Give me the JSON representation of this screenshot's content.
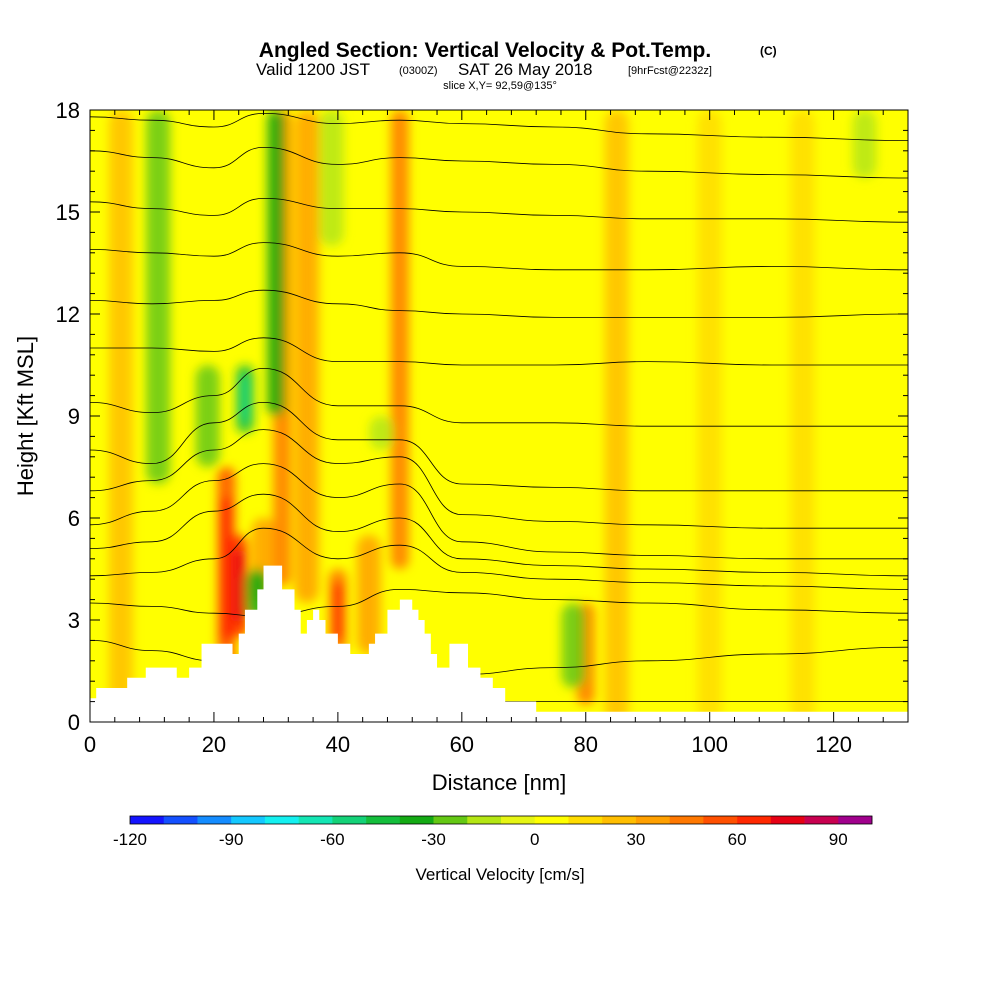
{
  "header": {
    "title": "Angled Section: Vertical Velocity & Pot.Temp.",
    "title_unit": "(C)",
    "valid_prefix": "Valid 1200 JST",
    "valid_utc": "(0300Z)",
    "valid_date": "SAT 26 May 2018",
    "forecast": "[9hrFcst@2232z]",
    "slice": "slice X,Y= 92,59@135°"
  },
  "chart_data": {
    "type": "heatmap",
    "title": "Angled Section: Vertical Velocity & Pot.Temp.",
    "xlabel": "Distance [nm]",
    "ylabel": "Height [Kft MSL]",
    "xlim": [
      0,
      132
    ],
    "ylim": [
      0,
      18
    ],
    "x_ticks": [
      "0",
      "20",
      "40",
      "60",
      "80",
      "100",
      "120"
    ],
    "y_ticks": [
      "0",
      "3",
      "6",
      "9",
      "12",
      "15",
      "18"
    ],
    "colorbar": {
      "label": "Vertical Velocity [cm/s]",
      "min": -120,
      "max": 100,
      "step": 10,
      "tick_labels": [
        "-120",
        "-90",
        "-60",
        "-30",
        "0",
        "30",
        "60",
        "90"
      ],
      "colors": [
        "#1414ff",
        "#1450ff",
        "#148cff",
        "#14c8ff",
        "#14f0f0",
        "#14e6b4",
        "#14d278",
        "#14be3c",
        "#14aa14",
        "#64c814",
        "#b4e614",
        "#e6f514",
        "#ffff00",
        "#ffdc00",
        "#ffbe00",
        "#ffa000",
        "#ff7800",
        "#ff5000",
        "#ff2800",
        "#e60014",
        "#c80050",
        "#a0008c"
      ]
    },
    "terrain_kft": [
      [
        0,
        0.7
      ],
      [
        1,
        1.0
      ],
      [
        6,
        1.3
      ],
      [
        9,
        1.6
      ],
      [
        14,
        1.3
      ],
      [
        16,
        1.6
      ],
      [
        18,
        2.3
      ],
      [
        23,
        2.0
      ],
      [
        24,
        2.6
      ],
      [
        25,
        3.3
      ],
      [
        27,
        3.9
      ],
      [
        28,
        4.6
      ],
      [
        31,
        3.9
      ],
      [
        33,
        3.3
      ],
      [
        34,
        2.6
      ],
      [
        35,
        3.0
      ],
      [
        36,
        3.3
      ],
      [
        37,
        3.0
      ],
      [
        38,
        2.6
      ],
      [
        40,
        2.3
      ],
      [
        42,
        2.0
      ],
      [
        45,
        2.3
      ],
      [
        46,
        2.6
      ],
      [
        48,
        3.3
      ],
      [
        50,
        3.6
      ],
      [
        52,
        3.3
      ],
      [
        53,
        3.0
      ],
      [
        54,
        2.6
      ],
      [
        55,
        2.0
      ],
      [
        56,
        1.6
      ],
      [
        58,
        2.3
      ],
      [
        61,
        1.6
      ],
      [
        63,
        1.3
      ],
      [
        65,
        1.0
      ],
      [
        67,
        0.6
      ],
      [
        72,
        0.3
      ],
      [
        132,
        0.3
      ]
    ],
    "updraft_zones": [
      {
        "x": 5,
        "z0": 0,
        "z1": 18,
        "w": 25
      },
      {
        "x": 22,
        "z0": 1.5,
        "z1": 7.5,
        "w": 50
      },
      {
        "x": 24,
        "z0": 2.5,
        "z1": 5.5,
        "w": 60
      },
      {
        "x": 28,
        "z0": 3.5,
        "z1": 6,
        "w": 35
      },
      {
        "x": 31,
        "z0": 4,
        "z1": 18,
        "w": 40
      },
      {
        "x": 35,
        "z0": 3.5,
        "z1": 18,
        "w": 30
      },
      {
        "x": 40,
        "z0": 2.0,
        "z1": 4.5,
        "w": 45
      },
      {
        "x": 45,
        "z0": 2.0,
        "z1": 5.5,
        "w": 30
      },
      {
        "x": 50,
        "z0": 4.5,
        "z1": 18,
        "w": 40
      },
      {
        "x": 80,
        "z0": 0.5,
        "z1": 3.5,
        "w": 40
      },
      {
        "x": 85,
        "z0": 0,
        "z1": 18,
        "w": 20
      },
      {
        "x": 100,
        "z0": 0,
        "z1": 18,
        "w": 15
      },
      {
        "x": 115,
        "z0": 0,
        "z1": 18,
        "w": 15
      }
    ],
    "downdraft_zones": [
      {
        "x": 11,
        "z0": 7,
        "z1": 18,
        "w": -25
      },
      {
        "x": 19,
        "z0": 7.5,
        "z1": 10.5,
        "w": -30
      },
      {
        "x": 25,
        "z0": 8.5,
        "z1": 10.5,
        "w": -45
      },
      {
        "x": 30,
        "z0": 9,
        "z1": 18,
        "w": -40
      },
      {
        "x": 27,
        "z0": 3.0,
        "z1": 4.5,
        "w": -35
      },
      {
        "x": 39,
        "z0": 14,
        "z1": 18,
        "w": -20
      },
      {
        "x": 47,
        "z0": 8,
        "z1": 9,
        "w": -20
      },
      {
        "x": 78,
        "z0": 1.0,
        "z1": 3.5,
        "w": -30
      },
      {
        "x": 125,
        "z0": 16,
        "z1": 18,
        "w": -20
      }
    ],
    "theta_contour_kft": [
      [
        0.6,
        0.6,
        0.6,
        0.6,
        0.6,
        0.6,
        0.6,
        0.6,
        0.6,
        0.6,
        0.6
      ],
      [
        2.4,
        2.1,
        1.8,
        1.5,
        1.4,
        1.3,
        1.4,
        1.6,
        1.8,
        2.0,
        2.2
      ],
      [
        3.5,
        3.4,
        3.2,
        3.1,
        3.4,
        3.9,
        3.8,
        3.6,
        3.5,
        3.3,
        3.2
      ],
      [
        4.3,
        4.4,
        4.8,
        5.7,
        4.8,
        5.2,
        4.4,
        4.2,
        4.1,
        4.0,
        3.9
      ],
      [
        5.1,
        5.3,
        6.2,
        6.7,
        5.6,
        6.0,
        4.8,
        4.6,
        4.5,
        4.4,
        4.3
      ],
      [
        5.8,
        6.2,
        7.1,
        7.6,
        6.6,
        7.0,
        5.3,
        5.0,
        4.9,
        4.8,
        4.8
      ],
      [
        6.8,
        7.1,
        8.0,
        8.6,
        7.6,
        7.8,
        6.1,
        5.9,
        5.8,
        5.7,
        5.7
      ],
      [
        8.0,
        7.6,
        8.8,
        9.4,
        8.3,
        8.3,
        7.0,
        6.9,
        6.8,
        6.8,
        6.8
      ],
      [
        9.4,
        9.1,
        9.6,
        10.4,
        9.3,
        9.3,
        8.8,
        8.8,
        8.7,
        8.7,
        8.7
      ],
      [
        11.0,
        11.0,
        10.9,
        11.3,
        10.6,
        10.6,
        10.5,
        10.5,
        10.6,
        10.5,
        10.5
      ],
      [
        12.4,
        12.3,
        12.4,
        12.7,
        12.3,
        12.1,
        12.0,
        11.9,
        11.9,
        11.9,
        12.0
      ],
      [
        13.9,
        13.8,
        13.7,
        14.1,
        13.7,
        13.8,
        13.4,
        13.3,
        13.3,
        13.4,
        13.3
      ],
      [
        15.3,
        15.1,
        14.9,
        15.4,
        15.1,
        15.1,
        15.0,
        14.9,
        14.8,
        14.8,
        14.7
      ],
      [
        16.8,
        16.6,
        16.3,
        16.9,
        16.4,
        16.6,
        16.5,
        16.4,
        16.2,
        16.1,
        16.0
      ],
      [
        17.8,
        17.7,
        17.5,
        17.9,
        17.6,
        17.7,
        17.6,
        17.5,
        17.3,
        17.2,
        17.1
      ]
    ],
    "theta_contour_x": [
      0,
      10,
      20,
      28,
      40,
      50,
      60,
      75,
      90,
      110,
      132
    ]
  }
}
